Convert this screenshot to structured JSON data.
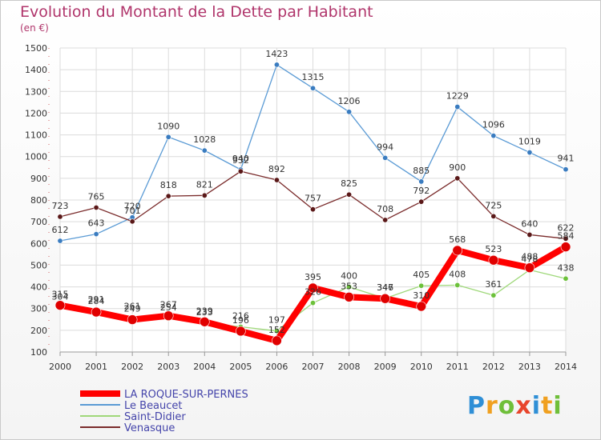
{
  "chart_data": {
    "type": "line",
    "title": "Evolution du Montant de la Dette par Habitant",
    "subtitle": "(en €)",
    "x": [
      "2000",
      "2001",
      "2002",
      "2003",
      "2004",
      "2005",
      "2006",
      "2007",
      "2008",
      "2009",
      "2010",
      "2011",
      "2012",
      "2013",
      "2014"
    ],
    "ylim": [
      100,
      1500
    ],
    "yticks": [
      100,
      200,
      300,
      400,
      500,
      600,
      700,
      800,
      900,
      1000,
      1100,
      1200,
      1300,
      1400,
      1500
    ],
    "grid": true,
    "legend_position": "bottom-left",
    "series": [
      {
        "name": "Le Beaucet",
        "color": "#5b9bd5",
        "marker_color": "#3a7cc0",
        "values": [
          612,
          643,
          720,
          1090,
          1028,
          940,
          1423,
          1315,
          1206,
          994,
          885,
          1229,
          1096,
          1019,
          941
        ]
      },
      {
        "name": "Venasque",
        "color": "#7a2b2b",
        "marker_color": "#5a1818",
        "values": [
          723,
          765,
          701,
          818,
          821,
          932,
          892,
          757,
          825,
          708,
          792,
          900,
          725,
          640,
          622
        ]
      },
      {
        "name": "Saint-Didier",
        "color": "#9fd87a",
        "marker_color": "#6cc13a",
        "values": [
          304,
          291,
          261,
          254,
          233,
          216,
          197,
          326,
          400,
          347,
          405,
          408,
          361,
          478,
          438
        ]
      },
      {
        "name": "LA ROQUE-SUR-PERNES",
        "color": "#ff0000",
        "marker_color": "#e00000",
        "values": [
          315,
          284,
          249,
          267,
          239,
          196,
          152,
          395,
          353,
          346,
          310,
          568,
          523,
          488,
          584
        ]
      }
    ],
    "legend": [
      {
        "name": "LA ROQUE-SUR-PERNES",
        "color": "#ff0000"
      },
      {
        "name": "Le Beaucet",
        "color": "#5b9bd5"
      },
      {
        "name": "Saint-Didier",
        "color": "#9fd87a"
      },
      {
        "name": "Venasque",
        "color": "#7a2b2b"
      }
    ]
  },
  "brand": {
    "letters": [
      "P",
      "r",
      "o",
      "x",
      "i",
      "t",
      "i"
    ],
    "colors": [
      "#2f8fd6",
      "#f0a020",
      "#6fbf3a",
      "#e8452c",
      "#2f8fd6",
      "#f0a020",
      "#6fbf3a"
    ]
  }
}
